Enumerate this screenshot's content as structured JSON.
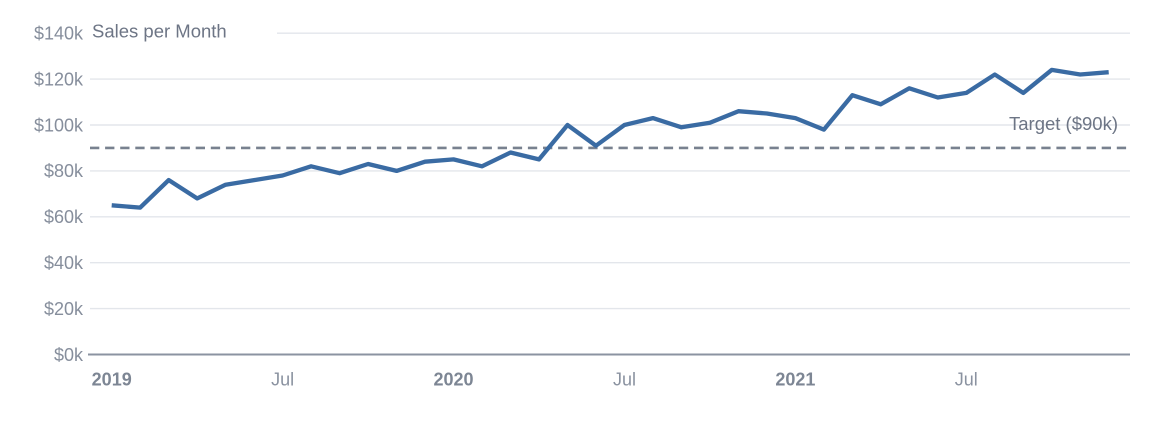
{
  "chart_data": {
    "type": "line",
    "title": "Sales per Month",
    "target_label": "Target ($90k)",
    "target_value": 90,
    "grid": true,
    "legend": "none",
    "ylim": [
      0,
      140
    ],
    "y_ticks": [
      {
        "value": 0,
        "label": "$0k"
      },
      {
        "value": 20,
        "label": "$20k"
      },
      {
        "value": 40,
        "label": "$40k"
      },
      {
        "value": 60,
        "label": "$60k"
      },
      {
        "value": 80,
        "label": "$80k"
      },
      {
        "value": 100,
        "label": "$100k"
      },
      {
        "value": 120,
        "label": "$120k"
      },
      {
        "value": 140,
        "label": "$140k"
      }
    ],
    "x_ticks": [
      {
        "index": 0,
        "label": "2019",
        "bold": true
      },
      {
        "index": 6,
        "label": "Jul",
        "bold": false
      },
      {
        "index": 12,
        "label": "2020",
        "bold": true
      },
      {
        "index": 18,
        "label": "Jul",
        "bold": false
      },
      {
        "index": 24,
        "label": "2021",
        "bold": true
      },
      {
        "index": 30,
        "label": "Jul",
        "bold": false
      }
    ],
    "x": [
      "Jan 2019",
      "Feb 2019",
      "Mar 2019",
      "Apr 2019",
      "May 2019",
      "Jun 2019",
      "Jul 2019",
      "Aug 2019",
      "Sep 2019",
      "Oct 2019",
      "Nov 2019",
      "Dec 2019",
      "Jan 2020",
      "Feb 2020",
      "Mar 2020",
      "Apr 2020",
      "May 2020",
      "Jun 2020",
      "Jul 2020",
      "Aug 2020",
      "Sep 2020",
      "Oct 2020",
      "Nov 2020",
      "Dec 2020",
      "Jan 2021",
      "Feb 2021",
      "Mar 2021",
      "Apr 2021",
      "May 2021",
      "Jun 2021",
      "Jul 2021",
      "Aug 2021",
      "Sep 2021",
      "Oct 2021",
      "Nov 2021",
      "Dec 2021"
    ],
    "series": [
      {
        "name": "Sales",
        "values": [
          65,
          64,
          76,
          68,
          74,
          76,
          78,
          82,
          79,
          83,
          80,
          84,
          85,
          82,
          88,
          85,
          100,
          91,
          100,
          103,
          99,
          101,
          106,
          105,
          103,
          98,
          113,
          109,
          116,
          112,
          114,
          122,
          114,
          124,
          122,
          123
        ]
      }
    ]
  },
  "colors": {
    "line": "#3A6BA3",
    "target_line": "#78818F",
    "gridline": "#E3E6EB",
    "axis_line": "#8B93A1",
    "y_tick_label": "#868E9C",
    "x_year_label": "#7D8694",
    "x_month_label": "#8A92A0",
    "title_text": "#6D7585",
    "target_text": "#6D7585"
  }
}
